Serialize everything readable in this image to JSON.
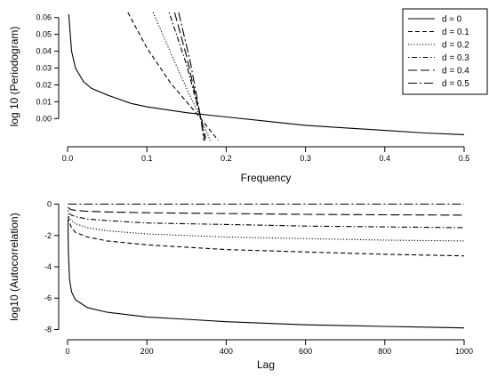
{
  "chart_data": [
    {
      "type": "line",
      "xlabel": "Frequency",
      "ylabel": "log 10 (Periodogram)",
      "xlim": [
        0,
        0.5
      ],
      "ylim": [
        -0.013,
        0.063
      ],
      "xticks": [
        0.0,
        0.1,
        0.2,
        0.3,
        0.4,
        0.5
      ],
      "xtick_labels": [
        "0.0",
        "0.1",
        "0.2",
        "0.3",
        "0.4",
        "0.5"
      ],
      "yticks": [
        0.0,
        0.01,
        0.02,
        0.03,
        0.04,
        0.05,
        0.06
      ],
      "ytick_labels": [
        "0.00",
        "0.01",
        "0.02",
        "0.03",
        "0.04",
        "0.05",
        "0.06"
      ],
      "legend": {
        "position": "top-right",
        "entries": [
          "d ≈ 0",
          "d = 0.1",
          "d = 0.2",
          "d = 0.3",
          "d = 0.4",
          "d = 0.5"
        ]
      },
      "series": [
        {
          "name": "d ≈ 0",
          "dash": "solid",
          "x": [
            0.0015,
            0.005,
            0.01,
            0.02,
            0.03,
            0.05,
            0.08,
            0.1,
            0.15,
            0.2,
            0.25,
            0.3,
            0.35,
            0.4,
            0.45,
            0.5
          ],
          "y": [
            0.062,
            0.04,
            0.03,
            0.022,
            0.018,
            0.014,
            0.009,
            0.007,
            0.0035,
            0.001,
            -0.0015,
            -0.004,
            -0.0055,
            -0.007,
            -0.0085,
            -0.0095
          ]
        },
        {
          "name": "d = 0.1",
          "dash": "dashed",
          "x": [
            0.076,
            0.1,
            0.13,
            0.15,
            0.168,
            0.19
          ],
          "y": [
            0.063,
            0.042,
            0.021,
            0.01,
            0.0,
            -0.013
          ]
        },
        {
          "name": "d = 0.2",
          "dash": "dotted",
          "x": [
            0.108,
            0.13,
            0.15,
            0.168,
            0.18
          ],
          "y": [
            0.063,
            0.039,
            0.018,
            0.0,
            -0.013
          ]
        },
        {
          "name": "d = 0.3",
          "dash": "dot-dash",
          "x": [
            0.128,
            0.15,
            0.168,
            0.175
          ],
          "y": [
            0.063,
            0.032,
            0.0,
            -0.013
          ]
        },
        {
          "name": "d = 0.4",
          "dash": "long-dash",
          "x": [
            0.135,
            0.15,
            0.168,
            0.173
          ],
          "y": [
            0.063,
            0.037,
            0.0,
            -0.013
          ]
        },
        {
          "name": "d = 0.5",
          "dash": "long-dash-dot",
          "x": [
            0.14,
            0.155,
            0.168,
            0.172
          ],
          "y": [
            0.063,
            0.033,
            0.0,
            -0.013
          ]
        }
      ]
    },
    {
      "type": "line",
      "xlabel": "Lag",
      "ylabel": "log10 (Autocorrelation)",
      "xlim": [
        0,
        1000
      ],
      "ylim": [
        -8.2,
        0.2
      ],
      "xticks": [
        0,
        200,
        400,
        600,
        800,
        1000
      ],
      "xtick_labels": [
        "0",
        "200",
        "400",
        "600",
        "800",
        "1000"
      ],
      "yticks": [
        -8,
        -6,
        -4,
        -2,
        0
      ],
      "ytick_labels": [
        "-8",
        "-6",
        "-4",
        "-2",
        "0"
      ],
      "series": [
        {
          "name": "d ≈ 0",
          "dash": "solid",
          "x": [
            1,
            2,
            5,
            10,
            20,
            50,
            100,
            200,
            300,
            400,
            500,
            600,
            700,
            800,
            900,
            1000
          ],
          "y": [
            -1.0,
            -3.0,
            -4.8,
            -5.6,
            -6.1,
            -6.6,
            -6.9,
            -7.2,
            -7.35,
            -7.5,
            -7.6,
            -7.7,
            -7.75,
            -7.8,
            -7.85,
            -7.9
          ]
        },
        {
          "name": "d = 0.1",
          "dash": "dashed",
          "x": [
            1,
            5,
            10,
            20,
            50,
            100,
            200,
            400,
            600,
            800,
            1000
          ],
          "y": [
            -0.8,
            -1.2,
            -1.5,
            -1.8,
            -2.1,
            -2.35,
            -2.6,
            -2.9,
            -3.05,
            -3.2,
            -3.3
          ]
        },
        {
          "name": "d = 0.2",
          "dash": "dotted",
          "x": [
            1,
            5,
            10,
            20,
            50,
            100,
            200,
            400,
            600,
            800,
            1000
          ],
          "y": [
            -0.6,
            -0.9,
            -1.05,
            -1.25,
            -1.5,
            -1.7,
            -1.9,
            -2.1,
            -2.2,
            -2.3,
            -2.35
          ]
        },
        {
          "name": "d = 0.3",
          "dash": "dot-dash",
          "x": [
            1,
            5,
            10,
            20,
            50,
            100,
            200,
            400,
            600,
            800,
            1000
          ],
          "y": [
            -0.4,
            -0.6,
            -0.7,
            -0.8,
            -0.95,
            -1.05,
            -1.2,
            -1.3,
            -1.4,
            -1.45,
            -1.5
          ]
        },
        {
          "name": "d = 0.4",
          "dash": "long-dash",
          "x": [
            1,
            5,
            10,
            20,
            50,
            100,
            200,
            400,
            600,
            800,
            1000
          ],
          "y": [
            -0.2,
            -0.3,
            -0.35,
            -0.4,
            -0.45,
            -0.5,
            -0.55,
            -0.6,
            -0.65,
            -0.68,
            -0.7
          ]
        },
        {
          "name": "d = 0.5",
          "dash": "long-dash-dot",
          "x": [
            1,
            10,
            100,
            500,
            1000
          ],
          "y": [
            0.0,
            0.0,
            0.0,
            0.0,
            0.0
          ]
        }
      ]
    }
  ]
}
